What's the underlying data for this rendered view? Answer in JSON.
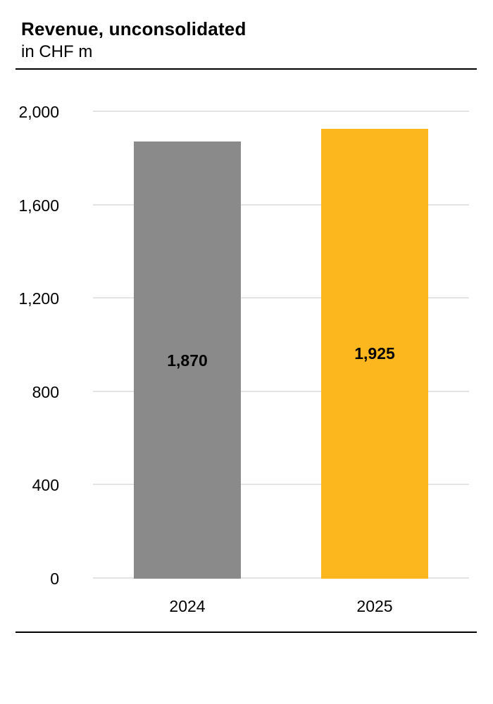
{
  "header": {
    "title": "Revenue, unconsolidated",
    "subtitle": "in CHF m"
  },
  "colors": {
    "background": "#FFFFFF",
    "text": "#000000",
    "rule": "#000000",
    "gridline": "#E4E4E4",
    "bar_2024": "#8A8A8A",
    "bar_2025": "#FDB71E"
  },
  "chart_data": {
    "type": "bar",
    "title": "Revenue, unconsolidated",
    "subtitle": "in CHF m",
    "unit": "CHF m",
    "categories": [
      "2024",
      "2025"
    ],
    "values": [
      1870,
      1925
    ],
    "value_labels": [
      "1,870",
      "1,925"
    ],
    "series_colors": [
      "#8A8A8A",
      "#FDB71E"
    ],
    "ylim": [
      0,
      2000
    ],
    "yticks": [
      0,
      400,
      800,
      1200,
      1600,
      2000
    ],
    "ytick_labels": [
      "0",
      "400",
      "800",
      "1,200",
      "1,600",
      "2,000"
    ],
    "grid": true,
    "legend": false,
    "value_label_position": "inside-center"
  }
}
